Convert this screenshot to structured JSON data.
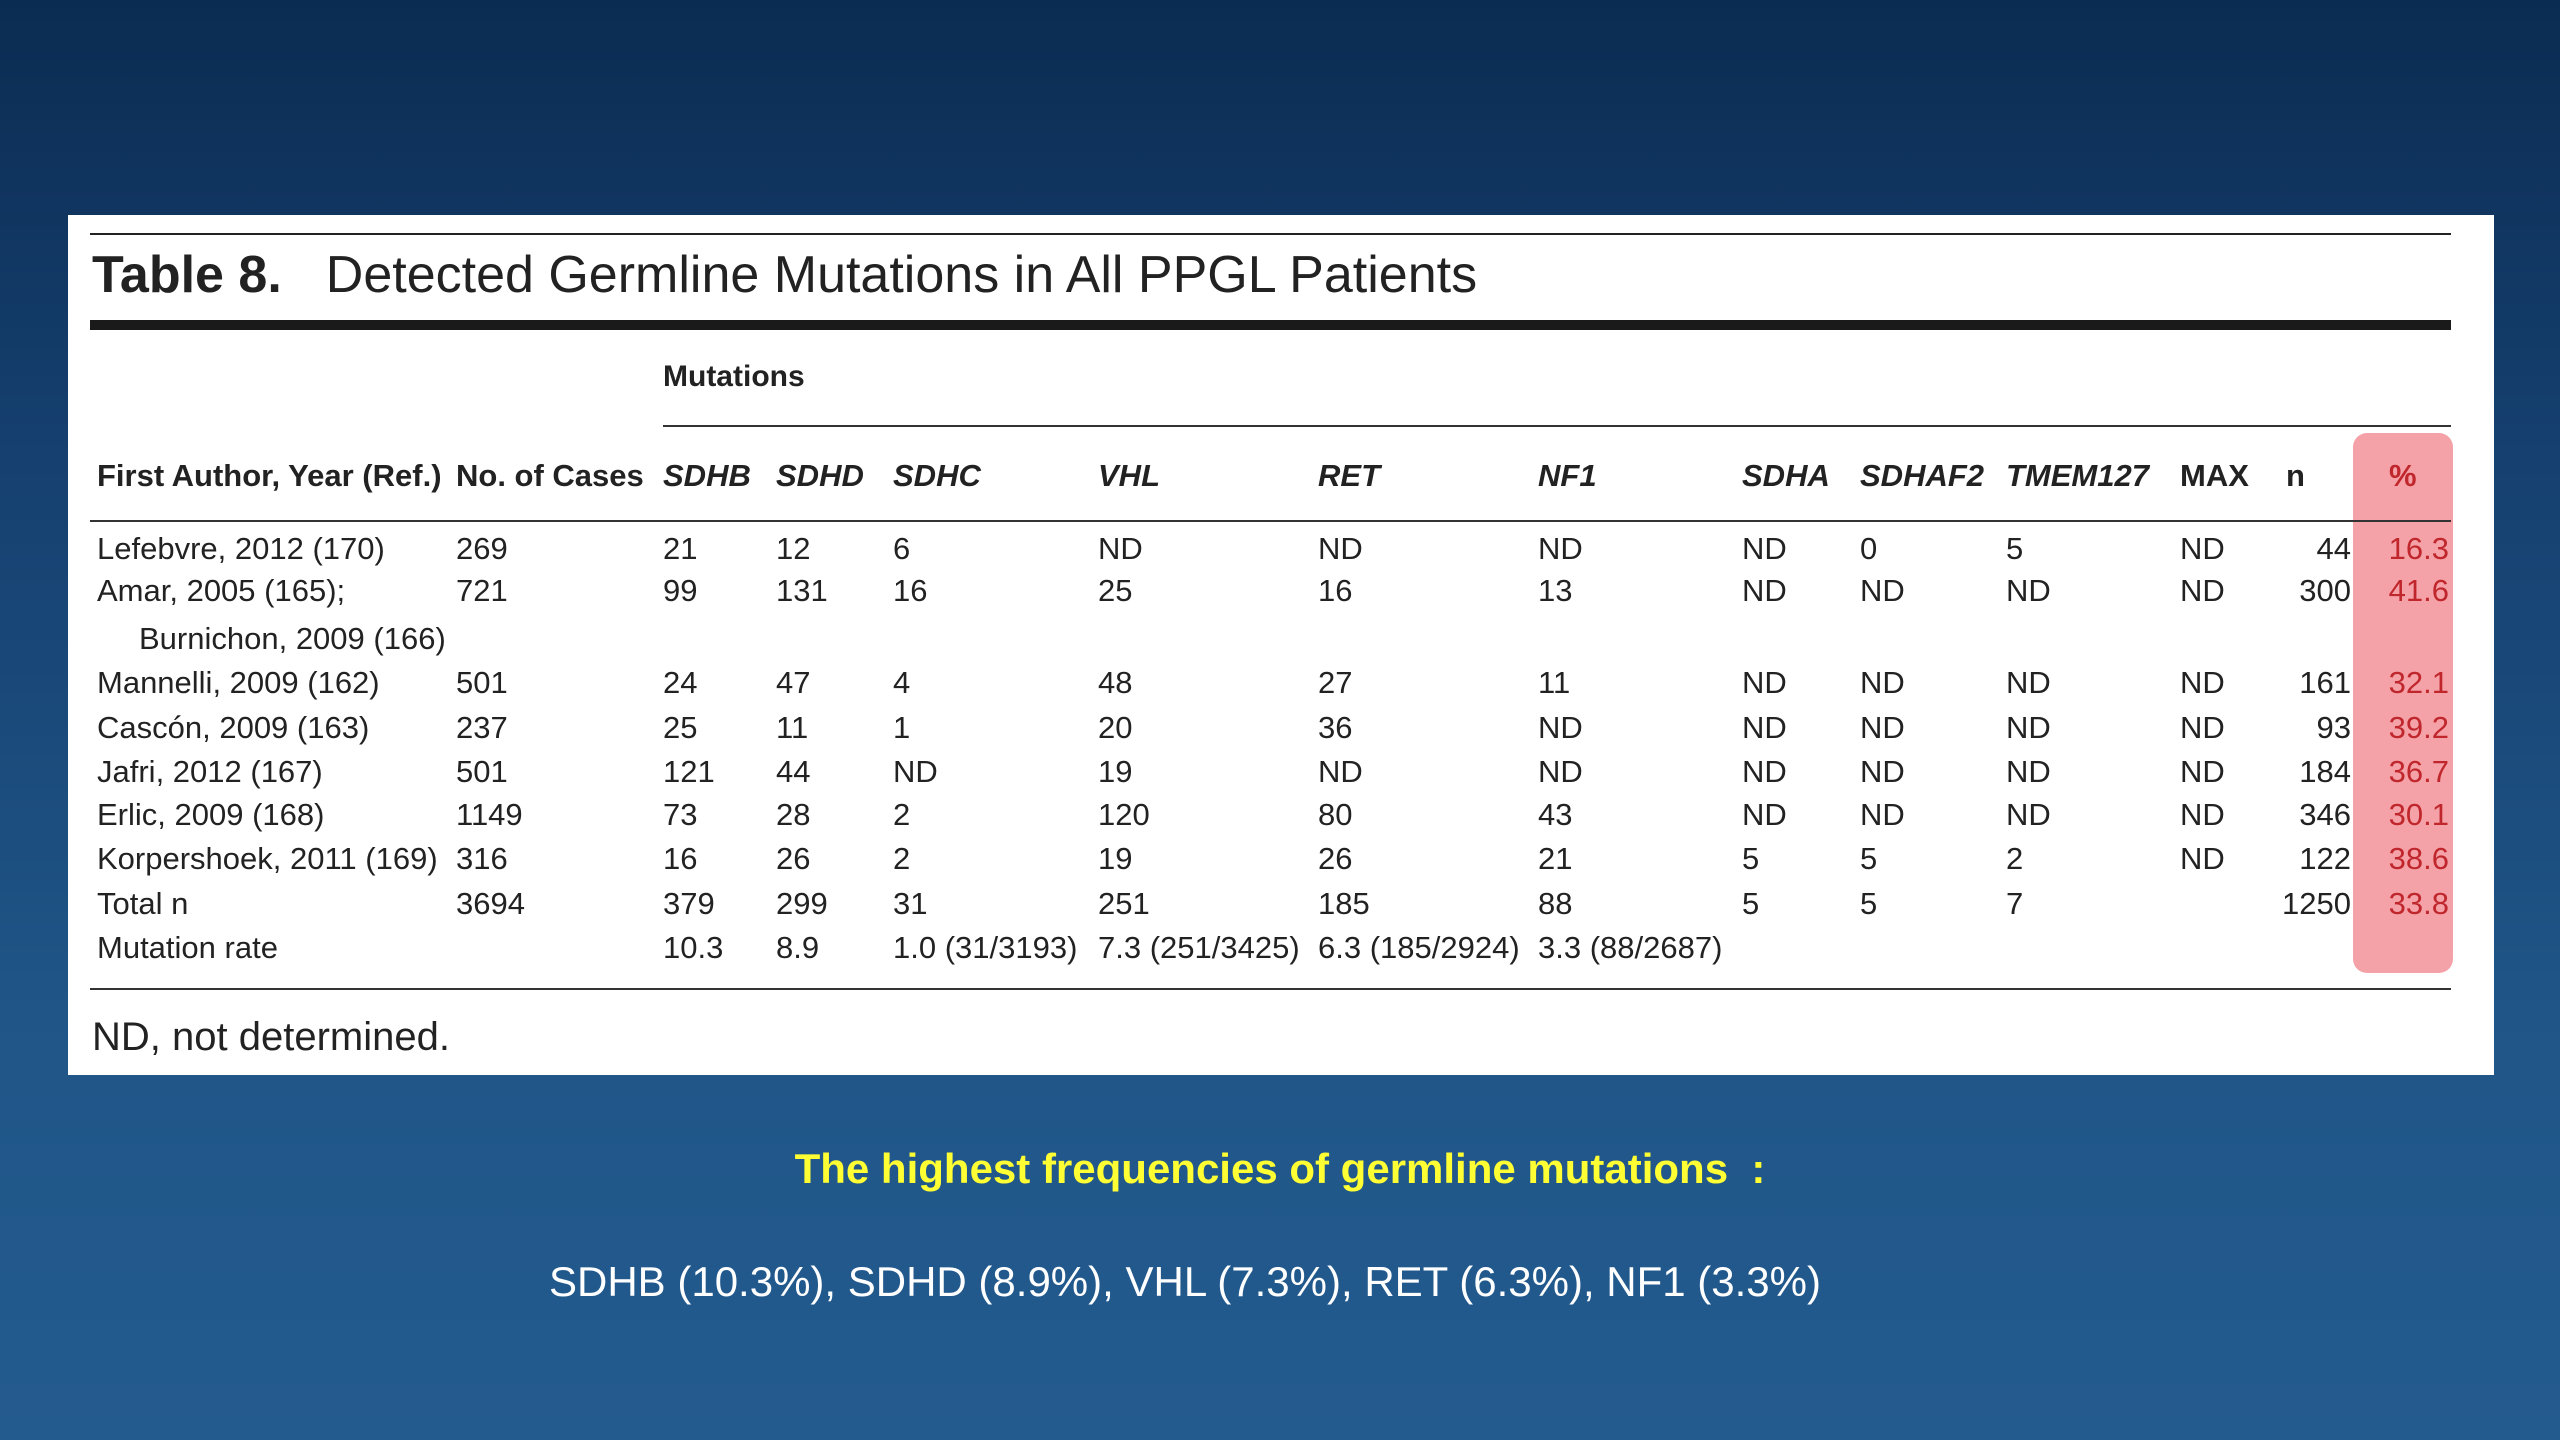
{
  "table": {
    "label": "Table 8.",
    "title": "Detected Germline Mutations in All PPGL Patients",
    "group_header": "Mutations",
    "columns": [
      "First Author, Year (Ref.)",
      "No. of Cases",
      "SDHB",
      "SDHD",
      "SDHC",
      "VHL",
      "RET",
      "NF1",
      "SDHA",
      "SDHAF2",
      "TMEM127",
      "MAX",
      "n",
      "%"
    ],
    "rows": [
      {
        "author": "Lefebvre, 2012 (170)",
        "author2": "",
        "cells": [
          "269",
          "21",
          "12",
          "6",
          "ND",
          "ND",
          "ND",
          "ND",
          "0",
          "5",
          "ND",
          "44",
          "16.3"
        ]
      },
      {
        "author": "Amar, 2005 (165);",
        "author2": "Burnichon, 2009 (166)",
        "cells": [
          "721",
          "99",
          "131",
          "16",
          "25",
          "16",
          "13",
          "ND",
          "ND",
          "ND",
          "ND",
          "300",
          "41.6"
        ]
      },
      {
        "author": "Mannelli, 2009 (162)",
        "author2": "",
        "cells": [
          "501",
          "24",
          "47",
          "4",
          "48",
          "27",
          "11",
          "ND",
          "ND",
          "ND",
          "ND",
          "161",
          "32.1"
        ]
      },
      {
        "author": "Cascón, 2009 (163)",
        "author2": "",
        "cells": [
          "237",
          "25",
          "11",
          "1",
          "20",
          "36",
          "ND",
          "ND",
          "ND",
          "ND",
          "ND",
          "93",
          "39.2"
        ]
      },
      {
        "author": "Jafri, 2012 (167)",
        "author2": "",
        "cells": [
          "501",
          "121",
          "44",
          "ND",
          "19",
          "ND",
          "ND",
          "ND",
          "ND",
          "ND",
          "ND",
          "184",
          "36.7"
        ]
      },
      {
        "author": "Erlic, 2009 (168)",
        "author2": "",
        "cells": [
          "1149",
          "73",
          "28",
          "2",
          "120",
          "80",
          "43",
          "ND",
          "ND",
          "ND",
          "ND",
          "346",
          "30.1"
        ]
      },
      {
        "author": "Korpershoek, 2011 (169)",
        "author2": "",
        "cells": [
          "316",
          "16",
          "26",
          "2",
          "19",
          "26",
          "21",
          "5",
          "5",
          "2",
          "ND",
          "122",
          "38.6"
        ]
      },
      {
        "author": "Total n",
        "author2": "",
        "cells": [
          "3694",
          "379",
          "299",
          "31",
          "251",
          "185",
          "88",
          "5",
          "5",
          "7",
          "",
          "1250",
          "33.8"
        ]
      },
      {
        "author": "Mutation rate",
        "author2": "",
        "cells": [
          "",
          "10.3",
          "8.9",
          "1.0 (31/3193)",
          "7.3 (251/3425)",
          "6.3 (185/2924)",
          "3.3 (88/2687)",
          "",
          "",
          "",
          "",
          "",
          ""
        ]
      }
    ],
    "footnote": "ND, not determined."
  },
  "highlight_heading": "The highest frequencies of germline mutations  :",
  "highlight_values": "SDHB (10.3%), SDHD (8.9%), VHL (7.3%), RET (6.3%), NF1 (3.3%)",
  "colors": {
    "highlight_text": "#ffff33",
    "percent_text": "#c0272d",
    "percent_background": "#f4a2a8",
    "background": "#1f5587"
  }
}
